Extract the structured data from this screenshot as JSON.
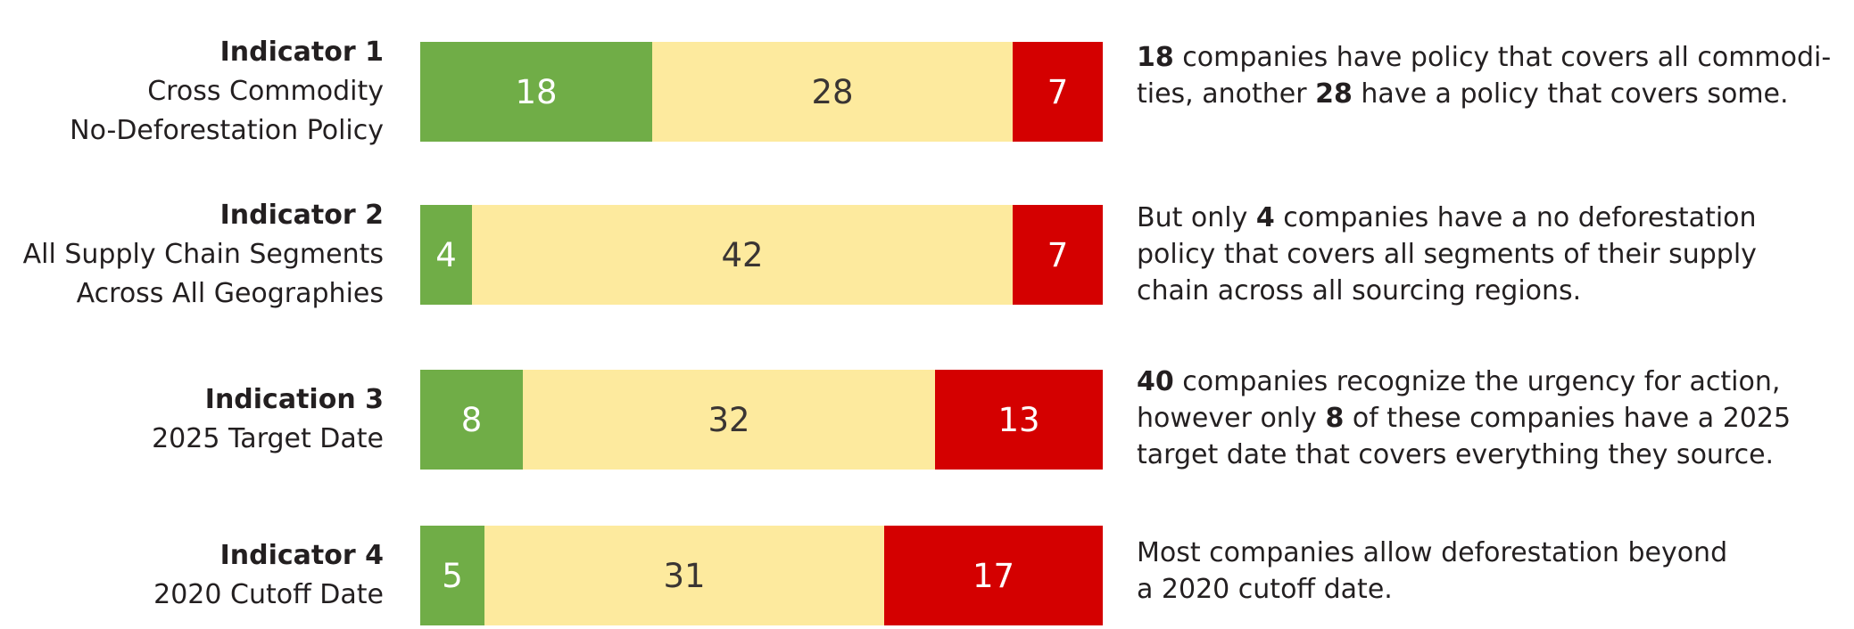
{
  "colors": {
    "green": "#70ad47",
    "yellow": "#fdea9e",
    "red": "#d40000",
    "text_dark": "#3a3533",
    "text_light": "#ffffff"
  },
  "chart_data": {
    "type": "bar",
    "orientation": "horizontal",
    "stacked": true,
    "categories": [
      "Indicator 1 Cross Commodity No-Deforestation Policy",
      "Indicator 2 All Supply Chain Segments Across All Geographies",
      "Indication 3 2025 Target Date",
      "Indicator 4 2020 Cutoff Date"
    ],
    "series": [
      {
        "values": [
          18,
          4,
          8,
          5
        ],
        "color": "#70ad47"
      },
      {
        "values": [
          28,
          42,
          32,
          31
        ],
        "color": "#fdea9e"
      },
      {
        "values": [
          7,
          7,
          13,
          17
        ],
        "color": "#d40000"
      }
    ],
    "xlim": [
      0,
      53
    ],
    "grid": false,
    "legend": "none"
  },
  "rows": [
    {
      "title": "Indicator 1",
      "lines": [
        "Cross Commodity",
        "No-Deforestation Policy"
      ],
      "note": [
        [
          {
            "t": "18",
            "b": true
          },
          {
            "t": " companies have policy that covers all commodi-"
          }
        ],
        [
          {
            "t": "ties, another "
          },
          {
            "t": "28",
            "b": true
          },
          {
            "t": " have a policy that covers some."
          }
        ]
      ]
    },
    {
      "title": "Indicator 2",
      "lines": [
        "All Supply Chain Segments",
        "Across All Geographies"
      ],
      "note": [
        [
          {
            "t": "But only "
          },
          {
            "t": "4",
            "b": true
          },
          {
            "t": " companies have a no deforestation"
          }
        ],
        [
          {
            "t": "policy that covers all segments of their supply"
          }
        ],
        [
          {
            "t": "chain across all sourcing regions."
          }
        ]
      ]
    },
    {
      "title": "Indication 3",
      "lines": [
        "2025 Target Date"
      ],
      "note": [
        [
          {
            "t": "40",
            "b": true
          },
          {
            "t": " companies recognize the urgency for action,"
          }
        ],
        [
          {
            "t": "however only "
          },
          {
            "t": "8",
            "b": true
          },
          {
            "t": " of these companies have a 2025"
          }
        ],
        [
          {
            "t": "target date that covers everything they source."
          }
        ]
      ]
    },
    {
      "title": "Indicator 4",
      "lines": [
        "2020 Cutoff Date"
      ],
      "note": [
        [
          {
            "t": "Most companies allow deforestation beyond"
          }
        ],
        [
          {
            "t": "a 2020 cutoff date."
          }
        ]
      ]
    }
  ]
}
